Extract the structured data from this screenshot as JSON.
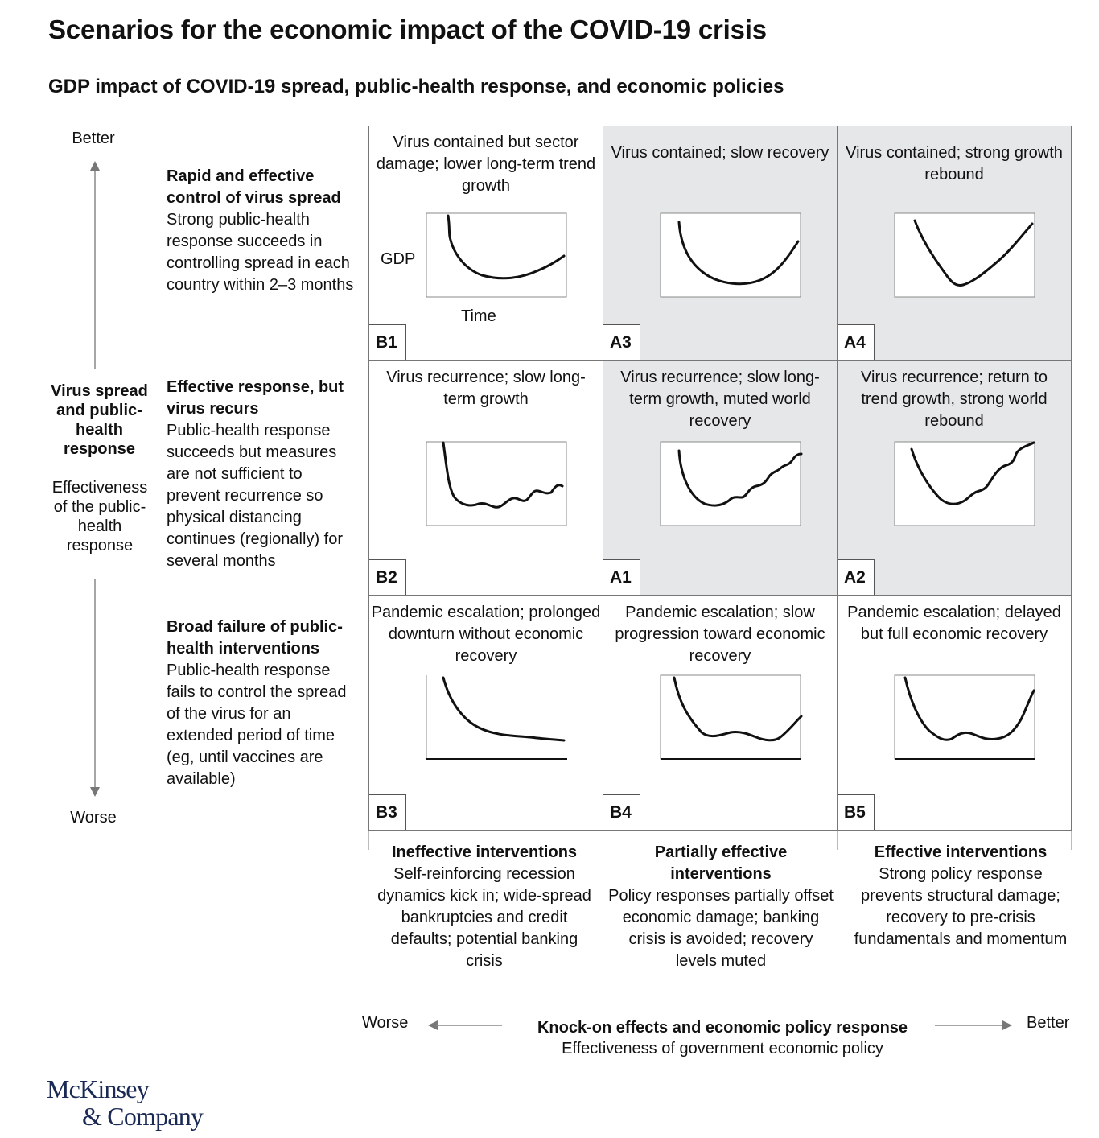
{
  "title": "Scenarios for the economic impact of the COVID-19 crisis",
  "subtitle": "GDP impact of COVID-19 spread, public-health response, and economic policies",
  "y_axis": {
    "top": "Better",
    "bottom": "Worse",
    "title": "Virus spread and public-health response",
    "description": "Effectiveness of the public-health response"
  },
  "rows": [
    {
      "heading": "Rapid and effective control of virus spread",
      "description": "Strong public-health response succeeds in controlling spread in each country within 2–3 months"
    },
    {
      "heading": "Effective response, but virus recurs",
      "description": "Public-health response succeeds but measures are not sufficient to prevent recurrence so physical distancing continues (regionally) for several months"
    },
    {
      "heading": "Broad failure of public-health interventions",
      "description": "Public-health response fails to control the spread of the virus for an extended period of time (eg, until vaccines are available)"
    }
  ],
  "cells": [
    {
      "code": "B1",
      "text": "Virus contained but sector damage; lower long-term trend growth",
      "shaded": false,
      "curve": "b1"
    },
    {
      "code": "A3",
      "text": "Virus contained; slow recovery",
      "shaded": true,
      "curve": "a3"
    },
    {
      "code": "A4",
      "text": "Virus contained; strong growth rebound",
      "shaded": true,
      "curve": "a4"
    },
    {
      "code": "B2",
      "text": "Virus recurrence; slow long-term growth",
      "shaded": false,
      "curve": "b2"
    },
    {
      "code": "A1",
      "text": "Virus recurrence; slow long-term growth, muted world recovery",
      "shaded": true,
      "curve": "a1"
    },
    {
      "code": "A2",
      "text": "Virus recurrence; return to trend growth, strong world rebound",
      "shaded": true,
      "curve": "a2"
    },
    {
      "code": "B3",
      "text": "Pandemic escalation; prolonged downturn without economic recovery",
      "shaded": false,
      "curve": "b3"
    },
    {
      "code": "B4",
      "text": "Pandemic escalation; slow progression toward economic recovery",
      "shaded": false,
      "curve": "b4"
    },
    {
      "code": "B5",
      "text": "Pandemic escalation; delayed but full economic recovery",
      "shaded": false,
      "curve": "b5"
    }
  ],
  "chart_axes": {
    "y": "GDP",
    "x": "Time"
  },
  "columns": [
    {
      "heading": "Ineffective interventions",
      "description": "Self-reinforcing recession dynamics kick in; wide-spread bankruptcies and credit defaults; potential banking crisis"
    },
    {
      "heading": "Partially effective interventions",
      "description": "Policy responses partially offset economic damage; banking crisis is avoided; recovery levels muted"
    },
    {
      "heading": "Effective interventions",
      "description": "Strong policy response prevents structural damage; recovery to pre-crisis fundamentals and momentum"
    }
  ],
  "x_axis": {
    "left": "Worse",
    "right": "Better",
    "title": "Knock-on effects and economic policy response",
    "description": "Effectiveness of government economic policy"
  },
  "logo": {
    "line1": "McKinsey",
    "line2": "& Company"
  },
  "colors": {
    "shaded": "#e6e7e9",
    "line": "#111111",
    "grid": "#777777",
    "logo": "#1b2a55"
  }
}
